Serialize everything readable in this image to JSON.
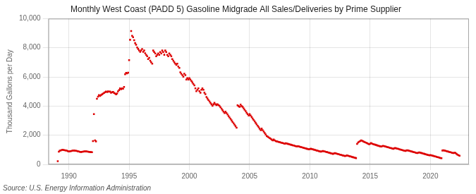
{
  "chart_data": {
    "type": "scatter",
    "title": "Monthly West Coast (PADD 5) Gasoline Midgrade All Sales/Deliveries by Prime Supplier",
    "y_label": "Thousand Gallons per Day",
    "annotations": [
      "Source: U.S. Energy Information Administration"
    ],
    "color": "#dd0000",
    "marker": "square",
    "grid": true,
    "xlim": [
      1988.3,
      2023.2
    ],
    "xticks": [
      1990,
      1995,
      2000,
      2005,
      2010,
      2015,
      2020
    ],
    "ylim": [
      0,
      10000
    ],
    "yticks": [
      0,
      {
        "value": 2000,
        "label": "2,000"
      },
      {
        "value": 4000,
        "label": "4,000"
      },
      {
        "value": 6000,
        "label": "6,000"
      },
      {
        "value": 8000,
        "label": "8,000"
      },
      {
        "value": 10000,
        "label": "10,000"
      }
    ],
    "x": [
      1989.08,
      1989.17,
      1989.25,
      1989.33,
      1989.42,
      1989.5,
      1989.58,
      1989.67,
      1989.75,
      1989.83,
      1989.92,
      1990.0,
      1990.08,
      1990.17,
      1990.25,
      1990.33,
      1990.42,
      1990.5,
      1990.58,
      1990.67,
      1990.75,
      1990.83,
      1990.92,
      1991.0,
      1991.08,
      1991.17,
      1991.25,
      1991.33,
      1991.42,
      1991.5,
      1991.58,
      1991.67,
      1991.75,
      1991.83,
      1991.92,
      1992.0,
      1992.08,
      1992.17,
      1992.25,
      1992.33,
      1992.42,
      1992.5,
      1992.58,
      1992.67,
      1992.75,
      1992.83,
      1992.92,
      1993.0,
      1993.08,
      1993.17,
      1993.25,
      1993.33,
      1993.42,
      1993.5,
      1993.58,
      1993.67,
      1993.75,
      1993.83,
      1993.92,
      1994.0,
      1994.08,
      1994.17,
      1994.25,
      1994.33,
      1994.42,
      1994.5,
      1994.58,
      1994.67,
      1994.75,
      1994.83,
      1994.92,
      1995.0,
      1995.08,
      1995.17,
      1995.25,
      1995.33,
      1995.42,
      1995.5,
      1995.58,
      1995.67,
      1995.75,
      1995.83,
      1995.92,
      1996.0,
      1996.08,
      1996.17,
      1996.25,
      1996.33,
      1996.42,
      1996.5,
      1996.58,
      1996.67,
      1996.75,
      1996.83,
      1996.92,
      1997.0,
      1997.08,
      1997.17,
      1997.25,
      1997.33,
      1997.42,
      1997.5,
      1997.58,
      1997.67,
      1997.75,
      1997.83,
      1997.92,
      1998.0,
      1998.08,
      1998.17,
      1998.25,
      1998.33,
      1998.42,
      1998.5,
      1998.58,
      1998.67,
      1998.75,
      1998.83,
      1998.92,
      1999.0,
      1999.08,
      1999.17,
      1999.25,
      1999.33,
      1999.42,
      1999.5,
      1999.58,
      1999.67,
      1999.75,
      1999.83,
      1999.92,
      2000.0,
      2000.08,
      2000.17,
      2000.25,
      2000.33,
      2000.42,
      2000.5,
      2000.58,
      2000.67,
      2000.75,
      2000.83,
      2000.92,
      2001.0,
      2001.08,
      2001.17,
      2001.25,
      2001.33,
      2001.42,
      2001.5,
      2001.58,
      2001.67,
      2001.75,
      2001.83,
      2001.92,
      2002.0,
      2002.08,
      2002.17,
      2002.25,
      2002.33,
      2002.42,
      2002.5,
      2002.58,
      2002.67,
      2002.75,
      2002.83,
      2002.92,
      2003.0,
      2003.08,
      2003.17,
      2003.25,
      2003.33,
      2003.42,
      2003.5,
      2003.58,
      2003.67,
      2003.75,
      2003.83,
      2003.92,
      2004.0,
      2004.08,
      2004.17,
      2004.25,
      2004.33,
      2004.42,
      2004.5,
      2004.58,
      2004.67,
      2004.75,
      2004.83,
      2004.92,
      2005.0,
      2005.08,
      2005.17,
      2005.25,
      2005.33,
      2005.42,
      2005.5,
      2005.58,
      2005.67,
      2005.75,
      2005.83,
      2005.92,
      2006.0,
      2006.08,
      2006.17,
      2006.25,
      2006.33,
      2006.42,
      2006.5,
      2006.58,
      2006.67,
      2006.75,
      2006.83,
      2006.92,
      2007.0,
      2007.08,
      2007.17,
      2007.25,
      2007.33,
      2007.42,
      2007.5,
      2007.58,
      2007.67,
      2007.75,
      2007.83,
      2007.92,
      2008.0,
      2008.08,
      2008.17,
      2008.25,
      2008.33,
      2008.42,
      2008.5,
      2008.58,
      2008.67,
      2008.75,
      2008.83,
      2008.92,
      2009.0,
      2009.08,
      2009.17,
      2009.25,
      2009.33,
      2009.42,
      2009.5,
      2009.58,
      2009.67,
      2009.75,
      2009.83,
      2009.92,
      2010.0,
      2010.08,
      2010.17,
      2010.25,
      2010.33,
      2010.42,
      2010.5,
      2010.58,
      2010.67,
      2010.75,
      2010.83,
      2010.92,
      2011.0,
      2011.08,
      2011.17,
      2011.25,
      2011.33,
      2011.42,
      2011.5,
      2011.58,
      2011.67,
      2011.75,
      2011.83,
      2011.92,
      2012.0,
      2012.08,
      2012.17,
      2012.25,
      2012.33,
      2012.42,
      2012.5,
      2012.58,
      2012.67,
      2012.75,
      2012.83,
      2012.92,
      2013.0,
      2013.08,
      2013.17,
      2013.25,
      2013.33,
      2013.42,
      2013.5,
      2013.58,
      2013.67,
      2013.75,
      2013.83,
      2013.92,
      2014.0,
      2014.08,
      2014.17,
      2014.25,
      2014.33,
      2014.42,
      2014.5,
      2014.58,
      2014.67,
      2014.75,
      2014.83,
      2014.92,
      2015.0,
      2015.08,
      2015.17,
      2015.25,
      2015.33,
      2015.42,
      2015.5,
      2015.58,
      2015.67,
      2015.75,
      2015.83,
      2015.92,
      2016.0,
      2016.08,
      2016.17,
      2016.25,
      2016.33,
      2016.42,
      2016.5,
      2016.58,
      2016.67,
      2016.75,
      2016.83,
      2016.92,
      2017.0,
      2017.08,
      2017.17,
      2017.25,
      2017.33,
      2017.42,
      2017.5,
      2017.58,
      2017.67,
      2017.75,
      2017.83,
      2017.92,
      2018.0,
      2018.08,
      2018.17,
      2018.25,
      2018.33,
      2018.42,
      2018.5,
      2018.58,
      2018.67,
      2018.75,
      2018.83,
      2018.92,
      2019.0,
      2019.08,
      2019.17,
      2019.25,
      2019.33,
      2019.42,
      2019.5,
      2019.58,
      2019.67,
      2019.75,
      2019.83,
      2019.92,
      2020.0,
      2020.08,
      2020.17,
      2020.25,
      2020.33,
      2020.42,
      2020.5,
      2020.58,
      2020.67,
      2020.75,
      2020.83,
      2020.92,
      2021.0,
      2021.08,
      2021.17,
      2021.25,
      2021.33,
      2021.42,
      2021.5,
      2021.58,
      2021.67,
      2021.75,
      2021.83,
      2021.92,
      2022.0,
      2022.08,
      2022.17,
      2022.25,
      2022.33,
      2022.42
    ],
    "values": [
      220,
      870,
      940,
      960,
      990,
      1000,
      980,
      970,
      960,
      940,
      910,
      880,
      900,
      910,
      930,
      940,
      950,
      940,
      930,
      920,
      900,
      880,
      860,
      850,
      860,
      870,
      880,
      890,
      890,
      880,
      870,
      860,
      850,
      840,
      830,
      1600,
      3450,
      1650,
      1580,
      4500,
      4650,
      4750,
      4700,
      4750,
      4800,
      4850,
      4900,
      4950,
      5000,
      4960,
      5010,
      4990,
      5000,
      4920,
      4950,
      4970,
      4900,
      4860,
      4810,
      4860,
      5010,
      5100,
      5210,
      5160,
      5210,
      5190,
      5310,
      6180,
      6280,
      6240,
      6290,
      7150,
      8550,
      9150,
      8820,
      8720,
      8520,
      8320,
      8210,
      8020,
      7920,
      7820,
      7720,
      7820,
      7910,
      7720,
      7810,
      7620,
      7510,
      7420,
      7220,
      7310,
      7120,
      7010,
      6910,
      7810,
      7710,
      7610,
      7420,
      7510,
      7610,
      7510,
      7710,
      7610,
      7810,
      7710,
      7520,
      7810,
      7710,
      7510,
      7420,
      7610,
      7510,
      7420,
      7220,
      7120,
      7010,
      6910,
      6820,
      6910,
      6720,
      6620,
      6320,
      6220,
      6120,
      6020,
      6220,
      6120,
      5820,
      5920,
      5820,
      5920,
      5820,
      5720,
      5620,
      5520,
      5420,
      5220,
      5020,
      5120,
      5220,
      5020,
      4920,
      5120,
      5220,
      5120,
      4920,
      4820,
      4620,
      4520,
      4420,
      4320,
      4220,
      4120,
      4020,
      4120,
      4220,
      4120,
      4070,
      4120,
      4070,
      4020,
      3920,
      3820,
      3720,
      3620,
      3520,
      3620,
      3520,
      3420,
      3320,
      3220,
      3120,
      3020,
      2920,
      2820,
      2720,
      2620,
      2520,
      4050,
      4000,
      3950,
      4100,
      4000,
      3950,
      3850,
      3750,
      3650,
      3550,
      3450,
      3350,
      3450,
      3350,
      3250,
      3150,
      3050,
      2950,
      2850,
      2750,
      2650,
      2550,
      2450,
      2350,
      2450,
      2350,
      2250,
      2150,
      2050,
      1950,
      1900,
      1850,
      1800,
      1750,
      1700,
      1650,
      1700,
      1650,
      1600,
      1580,
      1560,
      1540,
      1520,
      1500,
      1480,
      1460,
      1440,
      1420,
      1450,
      1430,
      1410,
      1390,
      1370,
      1350,
      1330,
      1310,
      1290,
      1270,
      1250,
      1230,
      1250,
      1230,
      1210,
      1190,
      1170,
      1150,
      1130,
      1110,
      1090,
      1070,
      1050,
      1030,
      1050,
      1070,
      1050,
      1030,
      1010,
      990,
      970,
      950,
      930,
      910,
      890,
      870,
      900,
      920,
      900,
      880,
      860,
      840,
      820,
      800,
      780,
      760,
      740,
      720,
      750,
      770,
      750,
      730,
      710,
      690,
      670,
      650,
      630,
      610,
      590,
      570,
      590,
      610,
      590,
      570,
      550,
      530,
      510,
      490,
      470,
      450,
      430,
      1400,
      1500,
      1550,
      1600,
      1650,
      1620,
      1580,
      1550,
      1510,
      1490,
      1450,
      1420,
      1380,
      1420,
      1460,
      1420,
      1390,
      1370,
      1350,
      1330,
      1300,
      1280,
      1260,
      1240,
      1220,
      1250,
      1270,
      1250,
      1230,
      1210,
      1190,
      1170,
      1150,
      1130,
      1110,
      1090,
      1070,
      1100,
      1120,
      1100,
      1080,
      1060,
      1040,
      1020,
      1000,
      980,
      960,
      940,
      920,
      950,
      970,
      950,
      930,
      910,
      890,
      870,
      850,
      830,
      810,
      790,
      770,
      800,
      820,
      800,
      780,
      760,
      740,
      720,
      700,
      680,
      660,
      640,
      620,
      640,
      620,
      600,
      580,
      560,
      540,
      520,
      500,
      480,
      460,
      440,
      420,
      950,
      970,
      950,
      930,
      910,
      890,
      870,
      850,
      830,
      810,
      790,
      770,
      800,
      780,
      720,
      670,
      630,
      590
    ]
  }
}
